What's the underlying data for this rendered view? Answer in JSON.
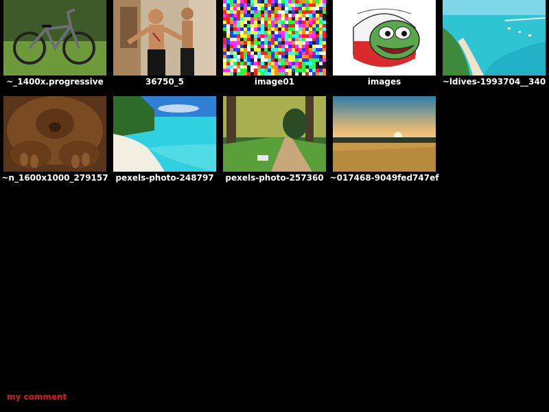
{
  "thumbnails": [
    {
      "label": "~_1400x.progressive",
      "icon": "mountain-bike-photo"
    },
    {
      "label": "36750_5",
      "icon": "martial-artist-photo"
    },
    {
      "label": "image01",
      "icon": "color-noise-image"
    },
    {
      "label": "images",
      "icon": "frog-meme-image"
    },
    {
      "label": "~ldives-1993704__340",
      "icon": "maldives-aerial-photo"
    },
    {
      "label": "~n_1600x1000_279157",
      "icon": "orangutan-photo"
    },
    {
      "label": "pexels-photo-248797",
      "icon": "tropical-beach-photo"
    },
    {
      "label": "pexels-photo-257360",
      "icon": "forest-path-photo"
    },
    {
      "label": "~017468-9049fed747ef",
      "icon": "sunset-field-photo"
    }
  ],
  "comment": {
    "text": "my comment",
    "color": "#e01818"
  },
  "colors": {
    "background": "#000000",
    "label": "#ffffff"
  }
}
